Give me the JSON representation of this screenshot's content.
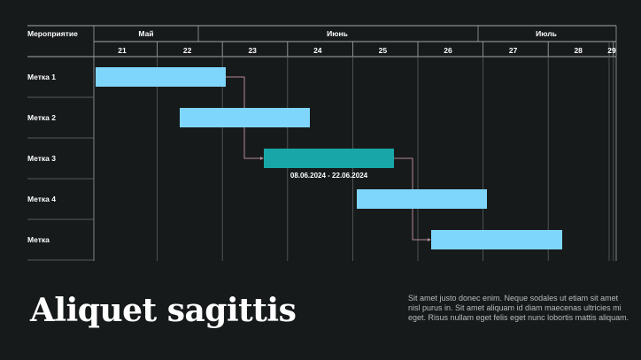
{
  "header": {
    "column_title": "Мероприятие"
  },
  "chart_data": {
    "type": "gantt",
    "months": [
      "Май",
      "Июнь",
      "Июль"
    ],
    "days": [
      "21",
      "22",
      "23",
      "24",
      "25",
      "26",
      "27",
      "28",
      "29"
    ],
    "tasks": [
      {
        "label": "Метка 1",
        "start": "2024-05-21",
        "end": "2024-05-23"
      },
      {
        "label": "Метка 2",
        "start": "2024-05-22",
        "end": "2024-05-24"
      },
      {
        "label": "Метка 3",
        "start": "2024-06-08",
        "end": "2024-06-22",
        "date_label": "08.06.2024 - 22.06.2024",
        "highlighted": true
      },
      {
        "label": "Метка 4",
        "start": "2024-06-25",
        "end": "2024-06-27"
      },
      {
        "label": "Метка",
        "start": "2024-06-26",
        "end": "2024-06-28"
      }
    ],
    "dependencies": [
      {
        "from": "Метка 1",
        "to": "Метка 3"
      },
      {
        "from": "Метка 3",
        "to": "Метка"
      }
    ],
    "colors": {
      "bar": "#7fd6fc",
      "highlight_bar": "#18a6a9",
      "background": "#171a1b",
      "grid": "#5a5f62",
      "connector": "#b0889a"
    }
  },
  "footer": {
    "title": "Aliquet sagittis",
    "description": "Sit amet justo donec enim. Neque sodales ut etiam sit amet nisl purus in. Sit amet aliquam id diam maecenas ultricies mi eget. Risus nullam eget felis eget nunc lobortis mattis aliquam."
  }
}
